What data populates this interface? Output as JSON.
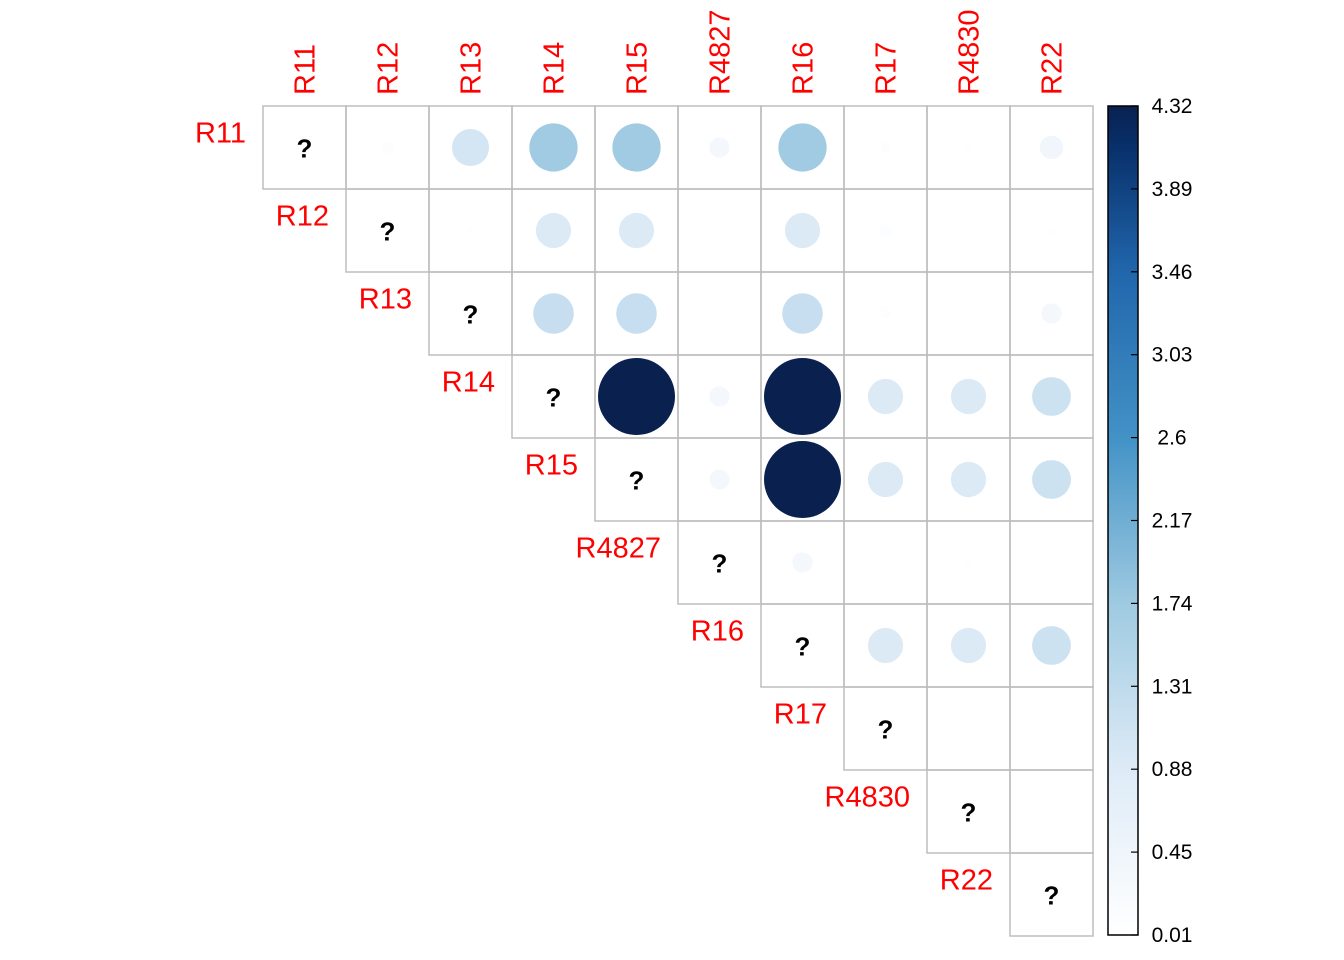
{
  "chart_data": {
    "type": "heatmap",
    "style": "upper-triangle circle correlation plot",
    "labels": [
      "R11",
      "R12",
      "R13",
      "R14",
      "R15",
      "R4827",
      "R16",
      "R17",
      "R4830",
      "R22"
    ],
    "diagonal_text": "?",
    "label_color": "#ff0000",
    "matrix": [
      [
        null,
        0.1,
        1.0,
        1.7,
        1.7,
        0.3,
        1.7,
        0.08,
        0.05,
        0.4
      ],
      [
        null,
        null,
        0.05,
        0.9,
        0.9,
        0.01,
        0.9,
        0.1,
        0.01,
        0.05
      ],
      [
        null,
        null,
        null,
        1.2,
        1.2,
        0.01,
        1.2,
        0.08,
        0.01,
        0.3
      ],
      [
        null,
        null,
        null,
        null,
        4.32,
        0.3,
        4.32,
        0.9,
        0.9,
        1.1
      ],
      [
        null,
        null,
        null,
        null,
        null,
        0.3,
        4.32,
        0.9,
        0.9,
        1.1
      ],
      [
        null,
        null,
        null,
        null,
        null,
        null,
        0.3,
        0.01,
        0.05,
        0.03
      ],
      [
        null,
        null,
        null,
        null,
        null,
        null,
        null,
        0.9,
        0.9,
        1.1
      ],
      [
        null,
        null,
        null,
        null,
        null,
        null,
        null,
        null,
        0.02,
        0.03
      ],
      [
        null,
        null,
        null,
        null,
        null,
        null,
        null,
        null,
        null,
        0.03
      ],
      [
        null,
        null,
        null,
        null,
        null,
        null,
        null,
        null,
        null,
        null
      ]
    ],
    "value_range": [
      0.01,
      4.32
    ],
    "colorbar": {
      "ticks": [
        "4.32",
        "3.89",
        "3.46",
        "3.03",
        "2.6",
        "2.17",
        "1.74",
        "1.31",
        "0.88",
        "0.45",
        "0.01"
      ],
      "colors": [
        "#ffffff",
        "#deebf7",
        "#9ecae1",
        "#4292c6",
        "#2166ac",
        "#08306b",
        "#0a2150"
      ]
    },
    "grid_color": "#bdbdbd"
  }
}
